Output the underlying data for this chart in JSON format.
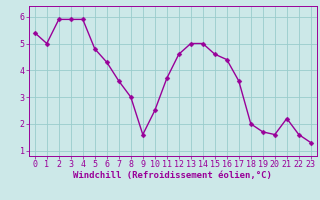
{
  "x": [
    0,
    1,
    2,
    3,
    4,
    5,
    6,
    7,
    8,
    9,
    10,
    11,
    12,
    13,
    14,
    15,
    16,
    17,
    18,
    19,
    20,
    21,
    22,
    23
  ],
  "y": [
    5.4,
    5.0,
    5.9,
    5.9,
    5.9,
    4.8,
    4.3,
    3.6,
    3.0,
    1.6,
    2.5,
    3.7,
    4.6,
    5.0,
    5.0,
    4.6,
    4.4,
    3.6,
    2.0,
    1.7,
    1.6,
    2.2,
    1.6,
    1.3
  ],
  "line_color": "#990099",
  "marker_color": "#990099",
  "bg_color": "#cce8e8",
  "grid_color": "#99cccc",
  "xlabel": "Windchill (Refroidissement éolien,°C)",
  "xlabel_color": "#990099",
  "xlabel_fontsize": 6.5,
  "xlim": [
    -0.5,
    23.5
  ],
  "ylim": [
    0.8,
    6.4
  ],
  "yticks": [
    1,
    2,
    3,
    4,
    5,
    6
  ],
  "xticks": [
    0,
    1,
    2,
    3,
    4,
    5,
    6,
    7,
    8,
    9,
    10,
    11,
    12,
    13,
    14,
    15,
    16,
    17,
    18,
    19,
    20,
    21,
    22,
    23
  ],
  "tick_fontsize": 6.0,
  "tick_color": "#990099",
  "line_width": 1.0,
  "marker_size": 2.5
}
